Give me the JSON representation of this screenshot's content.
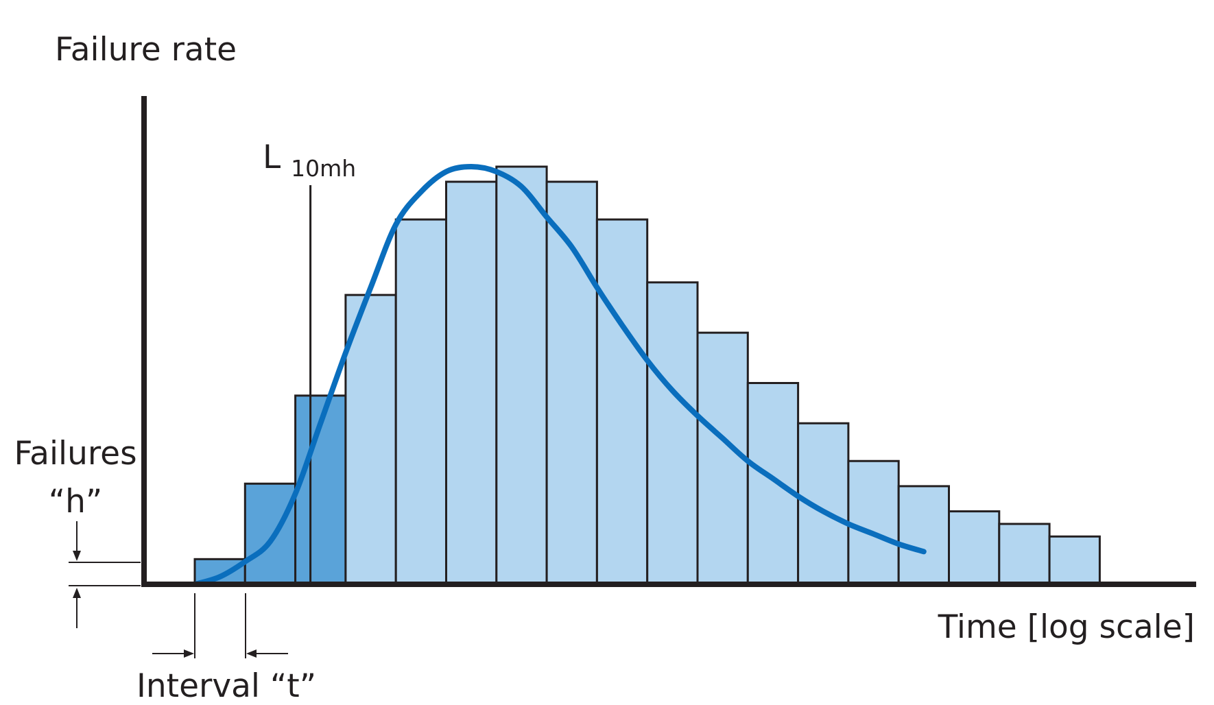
{
  "chart_data": {
    "type": "bar",
    "ylabel": "Failure rate",
    "xlabel": "Time [log scale]",
    "l10_label": {
      "main": "L",
      "sub": "10mh"
    },
    "height_label": [
      "Failures",
      "“h”"
    ],
    "interval_label": "Interval “t”",
    "bins": 18,
    "values": [
      1,
      4,
      7.5,
      11.5,
      14.5,
      16,
      16.6,
      16,
      14.5,
      12,
      10,
      8,
      6.4,
      4.9,
      3.9,
      2.9,
      2.4,
      1.9
    ],
    "highlighted_bins": [
      0,
      1,
      2
    ],
    "curve": [
      [
        0,
        0
      ],
      [
        0.5,
        0.3
      ],
      [
        1,
        0.9
      ],
      [
        1.5,
        1.7
      ],
      [
        2,
        3.6
      ],
      [
        2.5,
        6.4
      ],
      [
        3,
        9.2
      ],
      [
        3.5,
        11.8
      ],
      [
        4,
        14.3
      ],
      [
        4.5,
        15.6
      ],
      [
        5,
        16.4
      ],
      [
        5.5,
        16.6
      ],
      [
        6,
        16.4
      ],
      [
        6.5,
        15.8
      ],
      [
        7,
        14.6
      ],
      [
        7.5,
        13.4
      ],
      [
        8,
        11.8
      ],
      [
        8.5,
        10.3
      ],
      [
        9,
        8.9
      ],
      [
        9.5,
        7.7
      ],
      [
        10,
        6.7
      ],
      [
        10.5,
        5.8
      ],
      [
        11,
        4.9
      ],
      [
        11.5,
        4.2
      ],
      [
        12,
        3.5
      ],
      [
        12.5,
        2.9
      ],
      [
        13,
        2.4
      ],
      [
        13.5,
        2.0
      ],
      [
        14,
        1.6
      ],
      [
        14.5,
        1.3
      ]
    ],
    "l10_position": 2.3,
    "ylim": [
      0,
      20
    ],
    "colors": {
      "bar": "#b3d6f0",
      "bar_highlight": "#5aa3d9",
      "curve": "#0a6ebd",
      "edge": "#231f20",
      "axis": "#231f20"
    }
  }
}
